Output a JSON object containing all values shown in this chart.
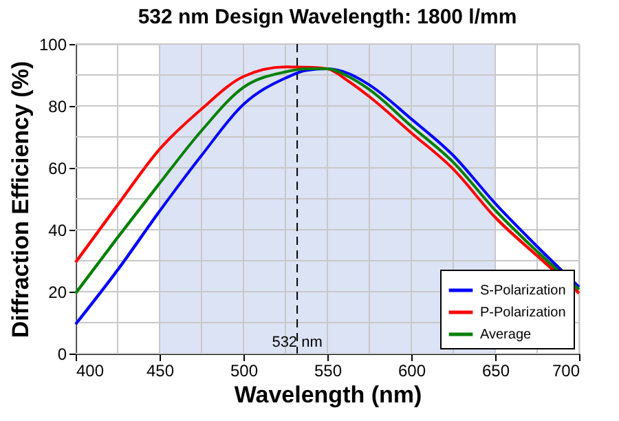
{
  "chart_data": {
    "type": "line",
    "title": "532 nm Design Wavelength: 1800 l/mm",
    "xlabel": "Wavelength (nm)",
    "ylabel": "Diffraction Efficiency (%)",
    "x": [
      400,
      425,
      450,
      475,
      500,
      525,
      537.5,
      550,
      562.5,
      575,
      600,
      625,
      650,
      675,
      700
    ],
    "series": [
      {
        "name": "S-Polarization",
        "color": "#0000ff",
        "values": [
          9.5,
          27,
          46,
          64,
          80.5,
          89,
          91.5,
          92,
          90.5,
          86.8,
          75.8,
          64,
          48.5,
          34.6,
          21.5
        ]
      },
      {
        "name": "P-Polarization",
        "color": "#ff0000",
        "values": [
          29.5,
          48,
          66,
          79,
          89.5,
          92.6,
          92.5,
          92,
          88,
          83,
          71.3,
          59.6,
          44,
          31.6,
          19.5
        ]
      },
      {
        "name": "Average",
        "color": "#008000",
        "values": [
          19.5,
          37.5,
          55,
          72,
          86,
          91,
          92,
          92,
          89.5,
          85.3,
          73.5,
          61.8,
          46.3,
          33,
          20.7
        ]
      }
    ],
    "xlim": [
      400,
      700
    ],
    "ylim": [
      0,
      100
    ],
    "xticks": [
      400,
      {
        "value": 425,
        "label": null
      },
      450,
      {
        "value": 475,
        "label": null
      },
      500,
      {
        "value": 525,
        "label": null
      },
      550,
      {
        "value": 575,
        "label": null
      },
      600,
      {
        "value": 625,
        "label": null
      },
      650,
      {
        "value": 675,
        "label": null
      },
      700
    ],
    "yticks": [
      0,
      {
        "value": 10,
        "label": null
      },
      20,
      {
        "value": 30,
        "label": null
      },
      40,
      {
        "value": 50,
        "label": null
      },
      60,
      {
        "value": 70,
        "label": null
      },
      80,
      {
        "value": 90,
        "label": null
      },
      100
    ],
    "bands": [
      {
        "axis": "x",
        "from": 450,
        "to": 650,
        "color": "#dce3f5"
      }
    ],
    "ref_lines": [
      {
        "axis": "x",
        "value": 532,
        "label": "532 nm",
        "line_style": "dashed",
        "color": "#000000"
      }
    ],
    "grid": true,
    "legend": "bottom right",
    "line_style": "solid",
    "marker": "none"
  }
}
